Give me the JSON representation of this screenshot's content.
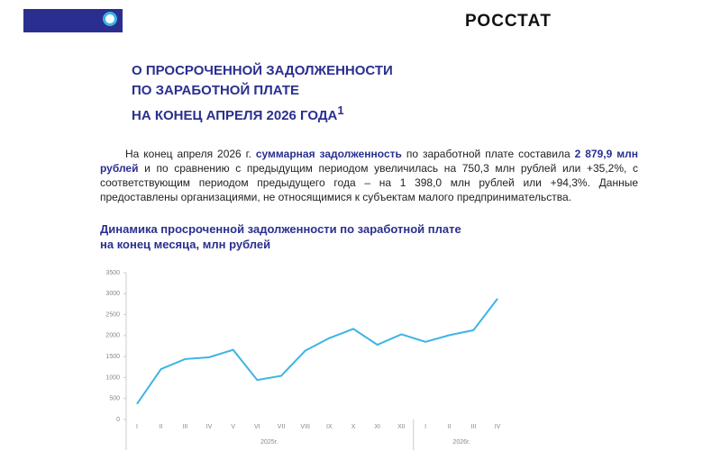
{
  "header": {
    "logo_text": "РОССТАТ"
  },
  "title": {
    "lines": [
      "О ПРОСРОЧЕННОЙ ЗАДОЛЖЕННОСТИ",
      "ПО ЗАРАБОТНОЙ ПЛАТЕ",
      "НА КОНЕЦ АПРЕЛЯ 2026 ГОДА"
    ],
    "footnote_mark": "1"
  },
  "body": {
    "parts": [
      "На конец апреля 2026 г. ",
      "суммарная задолженность",
      " по заработной плате составила ",
      "2 879,9 млн рублей",
      " и по сравнению с предыдущим периодом увеличилась на 750,3 млн рублей или +35,2%, с соответствующим периодом предыдущего года – на 1 398,0 млн рублей или +94,3%. Данные предоставлены организациями, не относящимися к субъектам малого предпринимательства."
    ]
  },
  "chart_data": {
    "type": "line",
    "title_lines": [
      "Динамика просроченной задолженности по заработной плате",
      "на конец месяца, млн рублей"
    ],
    "categories": [
      "I",
      "II",
      "III",
      "IV",
      "V",
      "VI",
      "VII",
      "VIII",
      "IX",
      "X",
      "XI",
      "XII",
      "I",
      "II",
      "III",
      "IV"
    ],
    "x_groups": [
      {
        "label": "2025г.",
        "count": 12
      },
      {
        "label": "2026г.",
        "count": 4
      }
    ],
    "values": [
      370,
      1200,
      1440,
      1481.9,
      1660,
      940,
      1040,
      1640,
      1940,
      2160,
      1780,
      2030,
      1850,
      2010,
      2129.6,
      2879.9
    ],
    "color": "#3cb4e5",
    "ylim": [
      0,
      3500
    ],
    "yticks": [
      0,
      500,
      1000,
      1500,
      2000,
      2500,
      3000,
      3500
    ],
    "grid": false
  }
}
